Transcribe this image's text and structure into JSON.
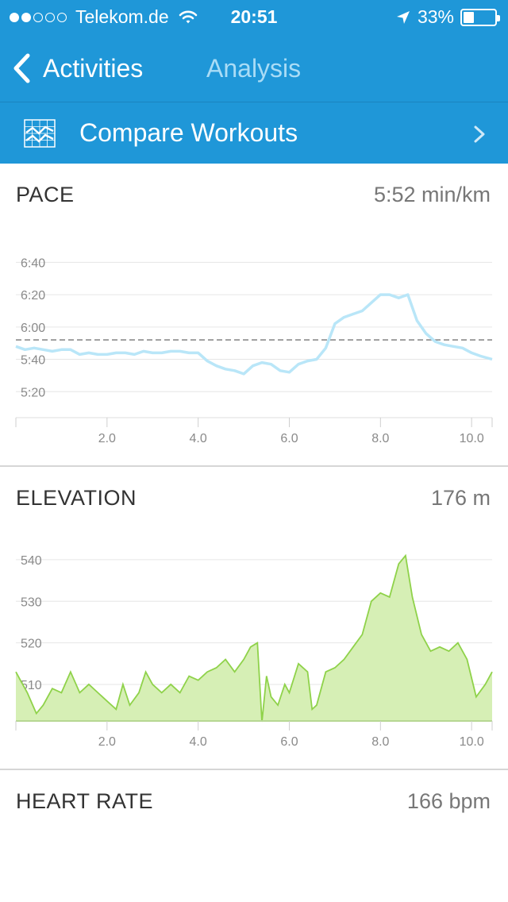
{
  "status": {
    "carrier": "Telekom.de",
    "time": "20:51",
    "battery": "33%",
    "signal_bars": 2,
    "battery_level": 0.33
  },
  "nav": {
    "back_label": "Activities",
    "title": "Analysis"
  },
  "compare": {
    "label": "Compare Workouts"
  },
  "colors": {
    "header": "#1f97d8",
    "pace_line": "#b9e6f8",
    "elevation_fill": "#d6efb5",
    "elevation_line": "#8fd24a"
  },
  "pace": {
    "title": "PACE",
    "value": "5:52 min/km"
  },
  "elevation": {
    "title": "ELEVATION",
    "value": "176 m"
  },
  "heart_rate": {
    "title": "HEART RATE",
    "value": "166 bpm"
  },
  "chart_data": [
    {
      "type": "line",
      "name": "pace",
      "y_tick_labels": [
        "6:40",
        "6:20",
        "6:00",
        "5:40",
        "5:20"
      ],
      "y_ticks": [
        400,
        380,
        360,
        340,
        320
      ],
      "x_tick_labels": [
        "2.0",
        "4.0",
        "6.0",
        "8.0",
        "10.0"
      ],
      "x_ticks": [
        2,
        4,
        6,
        8,
        10
      ],
      "xlim": [
        0,
        10.45
      ],
      "ylim": [
        300,
        410
      ],
      "average": 352,
      "x": [
        0,
        0.2,
        0.4,
        0.6,
        0.8,
        1.0,
        1.2,
        1.4,
        1.6,
        1.8,
        2.0,
        2.2,
        2.4,
        2.6,
        2.8,
        3.0,
        3.2,
        3.4,
        3.6,
        3.8,
        4.0,
        4.2,
        4.4,
        4.6,
        4.8,
        5.0,
        5.2,
        5.4,
        5.6,
        5.8,
        6.0,
        6.2,
        6.4,
        6.6,
        6.8,
        7.0,
        7.2,
        7.4,
        7.6,
        7.8,
        8.0,
        8.2,
        8.4,
        8.6,
        8.8,
        9.0,
        9.2,
        9.4,
        9.6,
        9.8,
        10.0,
        10.2,
        10.45
      ],
      "y": [
        348,
        346,
        347,
        346,
        345,
        346,
        346,
        343,
        344,
        343,
        343,
        344,
        344,
        343,
        345,
        344,
        344,
        345,
        345,
        344,
        344,
        339,
        336,
        334,
        333,
        331,
        336,
        338,
        337,
        333,
        332,
        337,
        339,
        340,
        347,
        362,
        366,
        368,
        370,
        375,
        380,
        380,
        378,
        380,
        364,
        356,
        351,
        349,
        348,
        347,
        344,
        342,
        340
      ]
    },
    {
      "type": "area",
      "name": "elevation",
      "y_tick_labels": [
        "540",
        "530",
        "520",
        "510"
      ],
      "y_ticks": [
        540,
        530,
        520,
        510
      ],
      "x_tick_labels": [
        "2.0",
        "4.0",
        "6.0",
        "8.0",
        "10.0"
      ],
      "x_ticks": [
        2,
        4,
        6,
        8,
        10
      ],
      "xlim": [
        0,
        10.45
      ],
      "ylim": [
        501.2,
        544
      ],
      "x": [
        0,
        0.1,
        0.25,
        0.45,
        0.6,
        0.8,
        1.0,
        1.2,
        1.4,
        1.6,
        1.8,
        2.0,
        2.2,
        2.35,
        2.5,
        2.7,
        2.85,
        3.0,
        3.2,
        3.4,
        3.6,
        3.8,
        4.0,
        4.2,
        4.4,
        4.6,
        4.8,
        5.0,
        5.15,
        5.3,
        5.4,
        5.5,
        5.6,
        5.75,
        5.9,
        6.0,
        6.2,
        6.4,
        6.5,
        6.6,
        6.8,
        7.0,
        7.2,
        7.4,
        7.6,
        7.8,
        8.0,
        8.2,
        8.4,
        8.55,
        8.7,
        8.9,
        9.1,
        9.3,
        9.5,
        9.7,
        9.9,
        10.1,
        10.3,
        10.45
      ],
      "y": [
        513,
        511,
        508,
        503,
        505,
        509,
        508,
        513,
        508,
        510,
        508,
        506,
        504,
        510,
        505,
        508,
        513,
        510,
        508,
        510,
        508,
        512,
        511,
        513,
        514,
        516,
        513,
        516,
        519,
        520,
        501,
        512,
        507,
        505,
        510,
        508,
        515,
        513,
        504,
        505,
        513,
        514,
        516,
        519,
        522,
        530,
        532,
        531,
        539,
        541,
        531,
        522,
        518,
        519,
        518,
        520,
        516,
        507,
        510,
        513
      ]
    }
  ]
}
